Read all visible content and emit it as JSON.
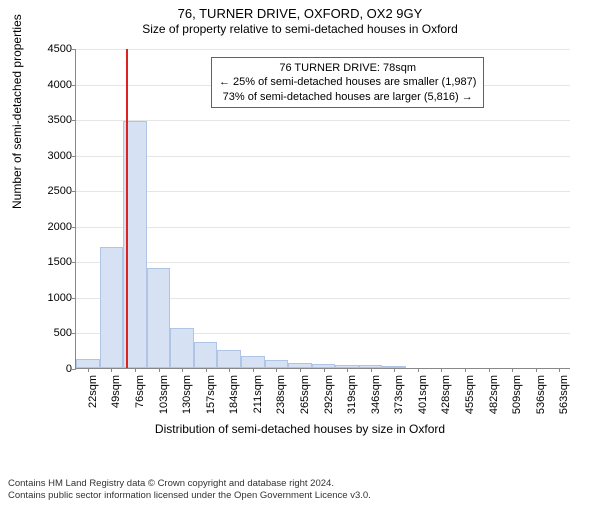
{
  "title": "76, TURNER DRIVE, OXFORD, OX2 9GY",
  "subtitle": "Size of property relative to semi-detached houses in Oxford",
  "ylabel": "Number of semi-detached properties",
  "xlabel": "Distribution of semi-detached houses by size in Oxford",
  "footer_line1": "Contains HM Land Registry data © Crown copyright and database right 2024.",
  "footer_line2": "Contains public sector information licensed under the Open Government Licence v3.0.",
  "infobox": {
    "line1": "76 TURNER DRIVE: 78sqm",
    "line2": "← 25% of semi-detached houses are smaller (1,987)",
    "line3": "73% of semi-detached houses are larger (5,816) →"
  },
  "chart": {
    "type": "histogram",
    "ylim": [
      0,
      4500
    ],
    "yticks": [
      0,
      500,
      1000,
      1500,
      2000,
      2500,
      3000,
      3500,
      4000,
      4500
    ],
    "x_tick_labels": [
      "22sqm",
      "49sqm",
      "76sqm",
      "103sqm",
      "130sqm",
      "157sqm",
      "184sqm",
      "211sqm",
      "238sqm",
      "265sqm",
      "292sqm",
      "319sqm",
      "346sqm",
      "373sqm",
      "401sqm",
      "428sqm",
      "455sqm",
      "482sqm",
      "509sqm",
      "536sqm",
      "563sqm"
    ],
    "bar_values": [
      120,
      1700,
      3470,
      1400,
      560,
      370,
      260,
      170,
      110,
      75,
      55,
      40,
      40,
      35,
      0,
      0,
      0,
      0,
      0,
      0,
      0
    ],
    "bar_fill": "#d6e1f3",
    "bar_stroke": "#b0c4e6",
    "marker_bin_index": 2,
    "marker_color": "#d22",
    "grid_color": "#e6e6e6",
    "axis_color": "#888888",
    "background_color": "#ffffff"
  }
}
